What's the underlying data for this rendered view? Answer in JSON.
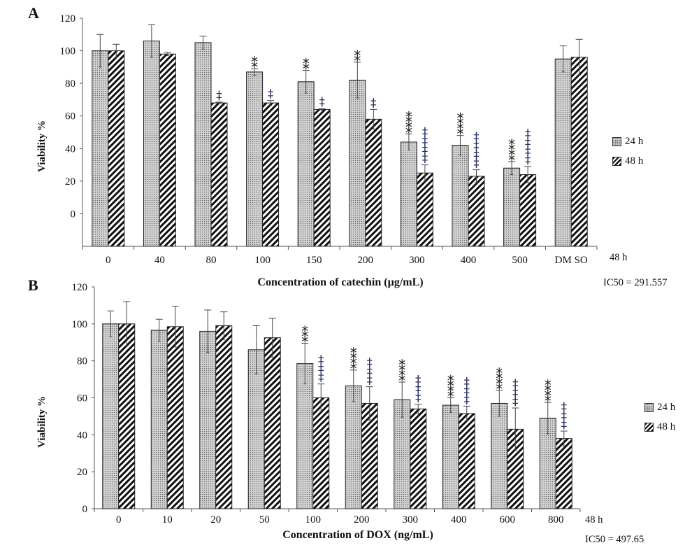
{
  "panels": [
    {
      "letter": "A",
      "ylabel": "Viability %",
      "xlabel": "Concentration of catechin (µg/mL)",
      "note_time": "48 h",
      "note_ic50": "IC50 = 291.557",
      "legend": [
        "24 h",
        "48 h"
      ]
    },
    {
      "letter": "B",
      "ylabel": "Viability %",
      "xlabel": "Concentration of DOX (ng/mL)",
      "note_time": "48 h",
      "note_ic50": "IC50 = 497.65",
      "legend": [
        "24 h",
        "48 h"
      ]
    }
  ],
  "chart_data": [
    {
      "type": "bar",
      "title": "",
      "xlabel": "Concentration of catechin (µg/mL)",
      "ylabel": "Viability %",
      "y_ticks": [
        "0",
        "20",
        "40",
        "60",
        "80",
        "100",
        "120"
      ],
      "ylim": [
        -20,
        120
      ],
      "categories": [
        "0",
        "40",
        "80",
        "100",
        "150",
        "200",
        "300",
        "400",
        "500",
        "DM SO"
      ],
      "series": [
        {
          "name": "24 h",
          "pattern": "dotted",
          "values": [
            100,
            106,
            105,
            87,
            81,
            82,
            44,
            42,
            28,
            95
          ],
          "errors": [
            10,
            10,
            4,
            2,
            7,
            11,
            5,
            6,
            4,
            8
          ]
        },
        {
          "name": "48 h",
          "pattern": "hatched",
          "values": [
            100,
            98,
            68,
            68,
            64,
            58,
            25,
            23,
            24,
            96
          ],
          "errors": [
            4,
            1,
            0.5,
            1.5,
            0.5,
            6,
            5,
            4,
            5,
            11
          ]
        }
      ],
      "annotations": {
        "24 h": [
          "",
          "",
          "",
          "**",
          "**",
          "**",
          "****",
          "****",
          "****",
          ""
        ],
        "48 h": [
          "",
          "",
          "‡",
          "‡",
          "‡",
          "‡",
          "‡‡‡‡",
          "‡‡‡‡",
          "‡‡‡‡",
          ""
        ]
      },
      "legend_position": "right",
      "grid": false
    },
    {
      "type": "bar",
      "title": "",
      "xlabel": "Concentration of DOX (ng/mL)",
      "ylabel": "Viability %",
      "y_ticks": [
        "0",
        "20",
        "40",
        "60",
        "80",
        "100",
        "120"
      ],
      "ylim": [
        0,
        120
      ],
      "categories": [
        "0",
        "10",
        "20",
        "50",
        "100",
        "200",
        "300",
        "400",
        "600",
        "800"
      ],
      "series": [
        {
          "name": "24 h",
          "pattern": "dotted",
          "values": [
            100,
            96.5,
            96,
            86,
            78.5,
            66.5,
            59,
            56,
            57,
            49
          ],
          "errors": [
            7,
            6,
            11.5,
            13,
            11,
            8.5,
            9.5,
            4,
            7,
            8.5
          ]
        },
        {
          "name": "48 h",
          "pattern": "hatched",
          "values": [
            100,
            98.5,
            99,
            92.5,
            60,
            57,
            54,
            51.5,
            43,
            38
          ],
          "errors": [
            12,
            11,
            7.5,
            10.5,
            7.5,
            9,
            2.5,
            4,
            11.5,
            4
          ]
        }
      ],
      "annotations": {
        "24 h": [
          "",
          "",
          "",
          "",
          "***",
          "****",
          "****",
          "****",
          "****",
          "****"
        ],
        "48 h": [
          "",
          "",
          "",
          "",
          "‡‡‡",
          "‡‡‡",
          "‡‡‡",
          "‡‡‡",
          "‡‡‡",
          "‡‡‡"
        ]
      },
      "legend_position": "right",
      "grid": false
    }
  ]
}
